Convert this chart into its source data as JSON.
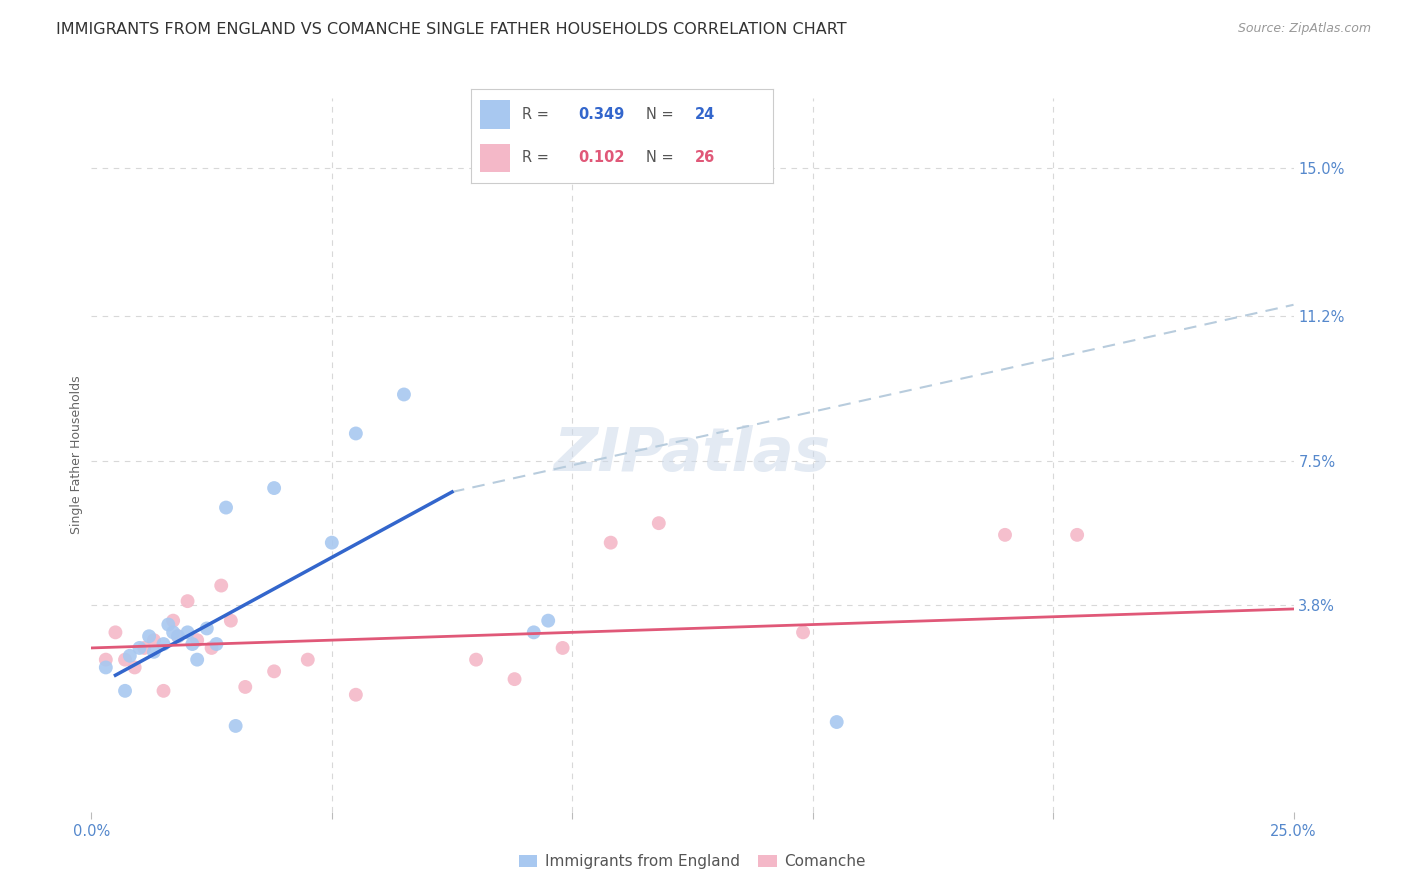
{
  "title": "IMMIGRANTS FROM ENGLAND VS COMANCHE SINGLE FATHER HOUSEHOLDS CORRELATION CHART",
  "source": "Source: ZipAtlas.com",
  "ylabel": "Single Father Households",
  "xlim": [
    0.0,
    0.25
  ],
  "ylim": [
    -0.015,
    0.168
  ],
  "grid_color": "#d8d8d8",
  "background_color": "#ffffff",
  "watermark": "ZIPatlas",
  "blue_color": "#a8c8f0",
  "pink_color": "#f4b8c8",
  "blue_line_color": "#3366cc",
  "pink_line_color": "#e05878",
  "dashed_line_color": "#b8ccdd",
  "axis_label_color": "#5588cc",
  "ylabel_color": "#666666",
  "title_color": "#333333",
  "legend_r1": "0.349",
  "legend_n1": "24",
  "legend_r2": "0.102",
  "legend_n2": "26",
  "blue_scatter_x": [
    0.003,
    0.007,
    0.008,
    0.01,
    0.012,
    0.013,
    0.015,
    0.016,
    0.017,
    0.018,
    0.02,
    0.021,
    0.022,
    0.024,
    0.026,
    0.028,
    0.03,
    0.038,
    0.05,
    0.055,
    0.065,
    0.092,
    0.095,
    0.155
  ],
  "blue_scatter_y": [
    0.022,
    0.016,
    0.025,
    0.027,
    0.03,
    0.026,
    0.028,
    0.033,
    0.031,
    0.03,
    0.031,
    0.028,
    0.024,
    0.032,
    0.028,
    0.063,
    0.007,
    0.068,
    0.054,
    0.082,
    0.092,
    0.031,
    0.034,
    0.008
  ],
  "pink_scatter_x": [
    0.003,
    0.005,
    0.007,
    0.009,
    0.011,
    0.013,
    0.015,
    0.017,
    0.018,
    0.02,
    0.022,
    0.025,
    0.027,
    0.029,
    0.032,
    0.038,
    0.045,
    0.055,
    0.08,
    0.088,
    0.098,
    0.108,
    0.118,
    0.148,
    0.19,
    0.205
  ],
  "pink_scatter_y": [
    0.024,
    0.031,
    0.024,
    0.022,
    0.027,
    0.029,
    0.016,
    0.034,
    0.03,
    0.039,
    0.029,
    0.027,
    0.043,
    0.034,
    0.017,
    0.021,
    0.024,
    0.015,
    0.024,
    0.019,
    0.027,
    0.054,
    0.059,
    0.031,
    0.056,
    0.056
  ],
  "blue_line_x": [
    0.005,
    0.075
  ],
  "blue_line_y": [
    0.02,
    0.067
  ],
  "pink_line_x": [
    0.0,
    0.25
  ],
  "pink_line_y": [
    0.027,
    0.037
  ],
  "dashed_line_x": [
    0.075,
    0.25
  ],
  "dashed_line_y": [
    0.067,
    0.115
  ],
  "ytick_vals": [
    0.038,
    0.075,
    0.112,
    0.15
  ],
  "ytick_labels": [
    "3.8%",
    "7.5%",
    "11.2%",
    "15.0%"
  ],
  "title_fontsize": 11.5,
  "source_fontsize": 9,
  "tick_fontsize": 10.5,
  "ylabel_fontsize": 9
}
